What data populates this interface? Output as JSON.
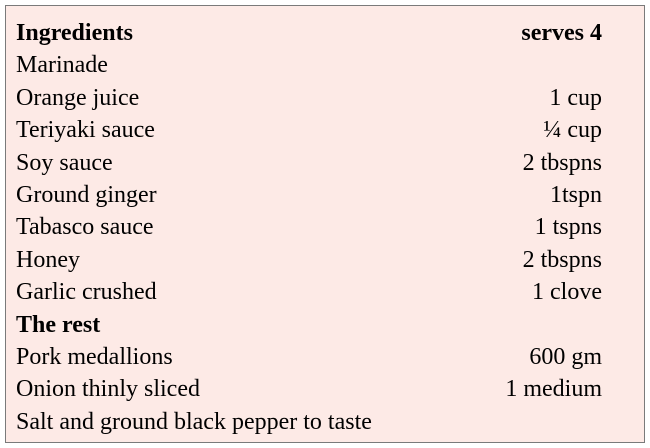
{
  "header": {
    "title": "Ingredients",
    "serves": "serves 4"
  },
  "sections": [
    {
      "title": "Marinade",
      "items": [
        {
          "name": "Orange juice",
          "amount": "1 cup"
        },
        {
          "name": "Teriyaki sauce",
          "amount": "¼ cup"
        },
        {
          "name": "Soy sauce",
          "amount": "2 tbspns"
        },
        {
          "name": "Ground ginger",
          "amount": "1tspn"
        },
        {
          "name": "Tabasco sauce",
          "amount": "1 tspns"
        },
        {
          "name": "Honey",
          "amount": "2 tbspns"
        },
        {
          "name": "Garlic crushed",
          "amount": "1 clove"
        }
      ]
    },
    {
      "title": "The rest",
      "items": [
        {
          "name": "Pork medallions",
          "amount": "600 gm"
        },
        {
          "name": "Onion thinly sliced",
          "amount": "1 medium"
        }
      ]
    }
  ],
  "note": "Salt and ground black pepper to taste"
}
